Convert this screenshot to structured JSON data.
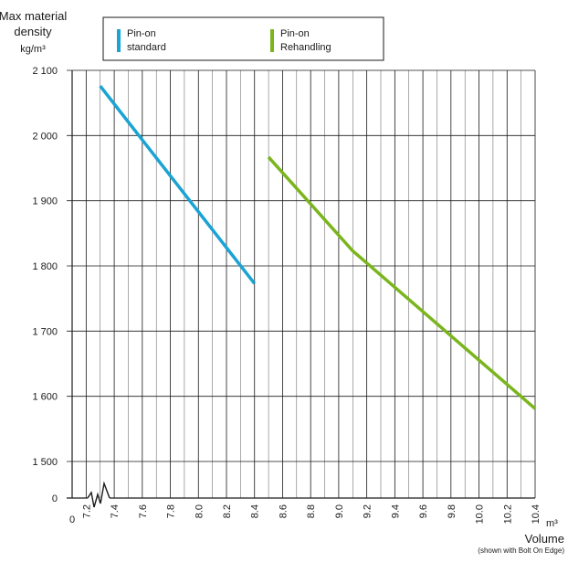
{
  "chart_data": {
    "type": "line",
    "ylabel_line1": "Max material",
    "ylabel_line2": "density",
    "ylabel_unit": "kg/m³",
    "xlabel": "Volume",
    "xlabel_unit": "m³",
    "xlabel_note": "(shown with Bolt On Edge)",
    "x_zero_label": "0",
    "xlim": [
      7.1,
      10.4
    ],
    "ylim": [
      1500,
      2100
    ],
    "x_ticks": [
      "7.2",
      "7.4",
      "7.6",
      "7.8",
      "8.0",
      "8.2",
      "8.4",
      "8.6",
      "8.8",
      "9.0",
      "9.2",
      "9.4",
      "9.6",
      "9.8",
      "10.0",
      "10.2",
      "10.4"
    ],
    "y_ticks": [
      {
        "value": 2100,
        "label": "2 100"
      },
      {
        "value": 2000,
        "label": "2 000"
      },
      {
        "value": 1900,
        "label": "1 900"
      },
      {
        "value": 1800,
        "label": "1 800"
      },
      {
        "value": 1700,
        "label": "1 700"
      },
      {
        "value": 1600,
        "label": "1 600"
      },
      {
        "value": 1500,
        "label": "1 500"
      }
    ],
    "y_zero_label": "0",
    "grid": true,
    "legend_position": "top",
    "series": [
      {
        "name_line1": "Pin-on",
        "name_line2": "standard",
        "color": "#1aa3d4",
        "points": [
          [
            7.3,
            2076
          ],
          [
            8.4,
            1773
          ]
        ]
      },
      {
        "name_line1": "Pin-on",
        "name_line2": "Rehandling",
        "color": "#7ab51d",
        "points": [
          [
            8.5,
            1967
          ],
          [
            9.1,
            1823
          ],
          [
            10.4,
            1581
          ]
        ]
      }
    ]
  }
}
